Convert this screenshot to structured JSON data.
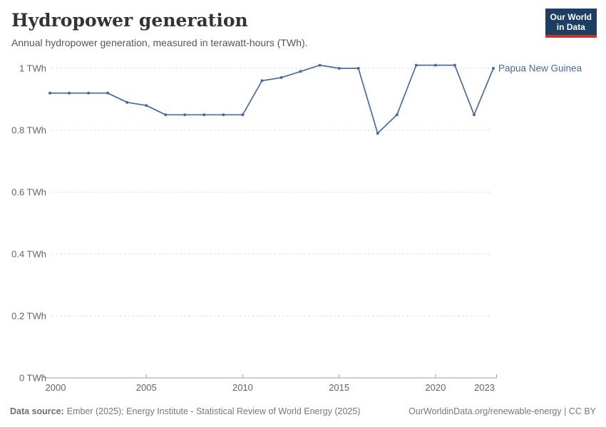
{
  "header": {
    "title": "Hydropower generation",
    "subtitle": "Annual hydropower generation, measured in terawatt-hours (TWh).",
    "logo_line1": "Our World",
    "logo_line2": "in Data"
  },
  "chart_data": {
    "type": "line",
    "title": "Hydropower generation",
    "unit": "TWh",
    "x": [
      2000,
      2001,
      2002,
      2003,
      2004,
      2005,
      2006,
      2007,
      2008,
      2009,
      2010,
      2011,
      2012,
      2013,
      2014,
      2015,
      2016,
      2017,
      2018,
      2019,
      2020,
      2021,
      2022,
      2023
    ],
    "series": [
      {
        "name": "Papua New Guinea",
        "color": "#4c6a9c",
        "values": [
          0.92,
          0.92,
          0.92,
          0.92,
          0.89,
          0.88,
          0.85,
          0.85,
          0.85,
          0.85,
          0.85,
          0.96,
          0.97,
          0.99,
          1.01,
          1.0,
          1.0,
          0.79,
          0.85,
          1.01,
          1.01,
          1.01,
          0.85,
          1.0
        ]
      }
    ],
    "entity_label": "Papua New Guinea",
    "x_tick_years": [
      2000,
      2005,
      2010,
      2015,
      2020,
      2023
    ],
    "x_tick_marks": [
      2005,
      2010,
      2015,
      2020
    ],
    "y_ticks": [
      {
        "value": 0,
        "label": "0 TWh"
      },
      {
        "value": 0.2,
        "label": "0.2 TWh"
      },
      {
        "value": 0.4,
        "label": "0.4 TWh"
      },
      {
        "value": 0.6,
        "label": "0.6 TWh"
      },
      {
        "value": 0.8,
        "label": "0.8 TWh"
      },
      {
        "value": 1,
        "label": "1 TWh"
      }
    ],
    "ylim": [
      0,
      1.05
    ],
    "grid": true,
    "legend_position": "right-of-line-end"
  },
  "footer": {
    "source_label": "Data source:",
    "source_text": "Ember (2025); Energy Institute - Statistical Review of World Energy (2025)",
    "credit": "OurWorldinData.org/renewable-energy | CC BY"
  },
  "colors": {
    "line": "#4c6a9c",
    "grid": "#dddddd",
    "axis": "#9e9e9e",
    "tick_label": "#636363",
    "title": "#333333",
    "subtitle": "#555555",
    "footer": "#787878",
    "logo_bg": "#1d3d63",
    "logo_red": "#c5332d"
  }
}
